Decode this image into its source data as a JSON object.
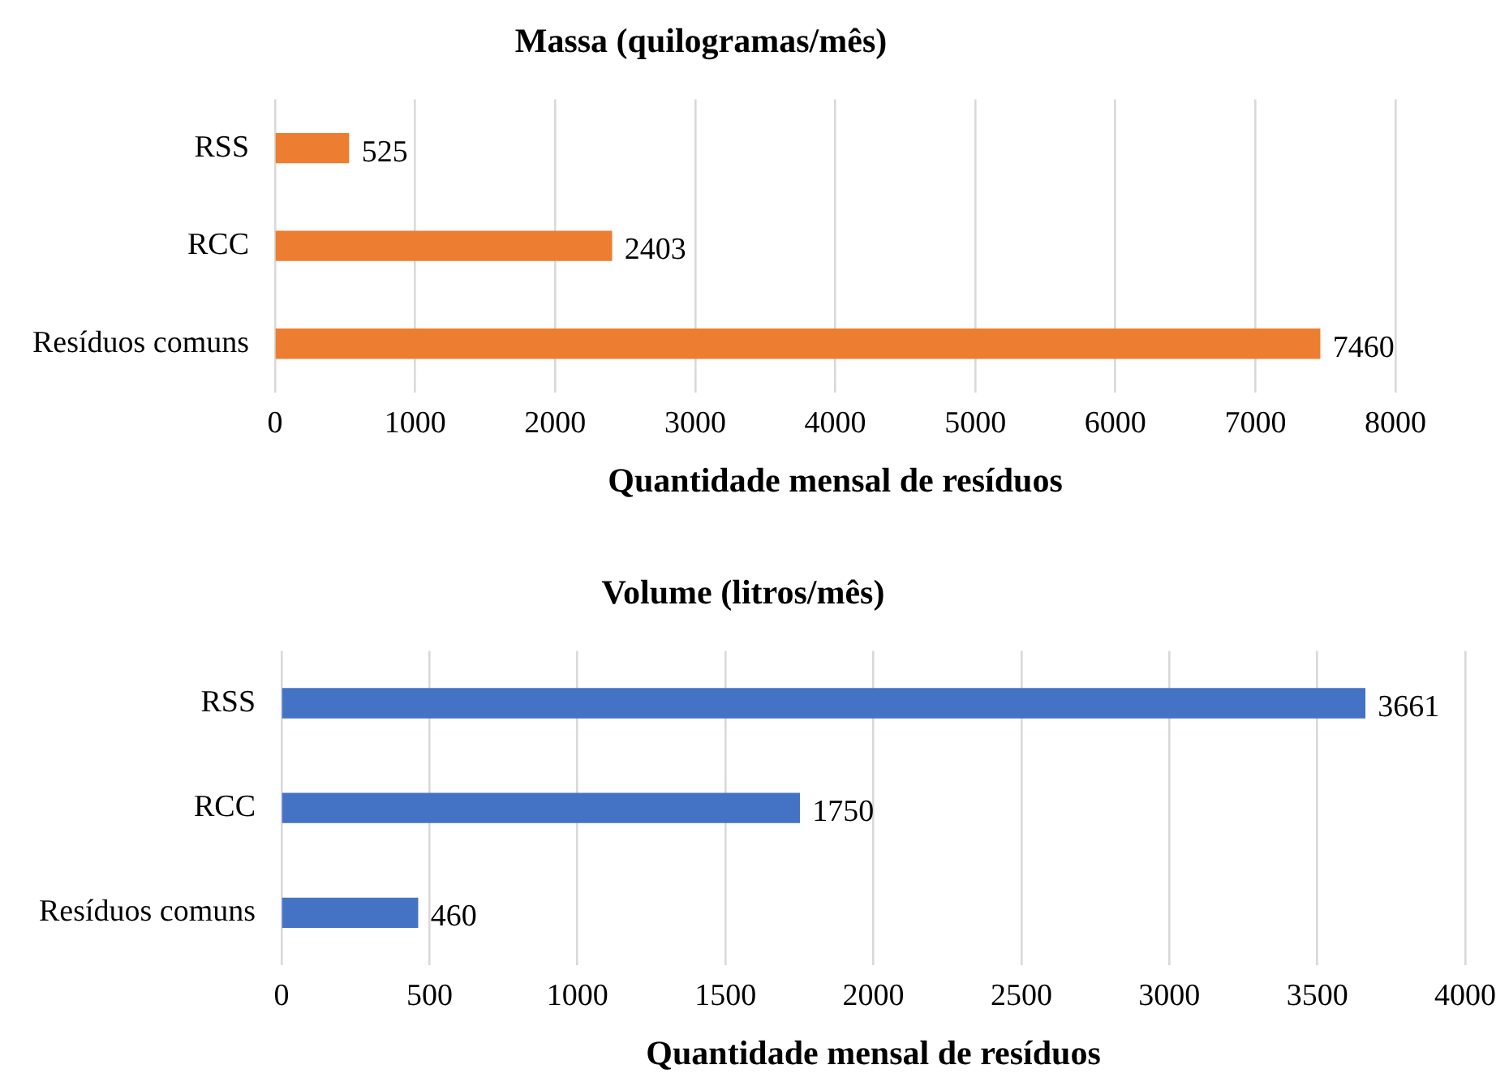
{
  "chart_data": [
    {
      "type": "bar",
      "orientation": "horizontal",
      "title": "Massa (quilogramas/mês)",
      "xlabel": "Quantidade mensal de resíduos",
      "categories": [
        "RSS",
        "RCC",
        "Resíduos comuns"
      ],
      "values": [
        525,
        2403,
        7460
      ],
      "color": "#ed7d31",
      "xlim": [
        0,
        8000
      ],
      "xticks": [
        0,
        1000,
        2000,
        3000,
        4000,
        5000,
        6000,
        7000,
        8000
      ],
      "grid": "x",
      "data_labels": true,
      "legend": false
    },
    {
      "type": "bar",
      "orientation": "horizontal",
      "title": "Volume (litros/mês)",
      "xlabel": "Quantidade mensal de resíduos",
      "categories": [
        "RSS",
        "RCC",
        "Resíduos comuns"
      ],
      "values": [
        3661,
        1750,
        460
      ],
      "color": "#4472c4",
      "xlim": [
        0,
        4000
      ],
      "xticks": [
        0,
        500,
        1000,
        1500,
        2000,
        2500,
        3000,
        3500,
        4000
      ],
      "grid": "x",
      "data_labels": true,
      "legend": false
    }
  ]
}
